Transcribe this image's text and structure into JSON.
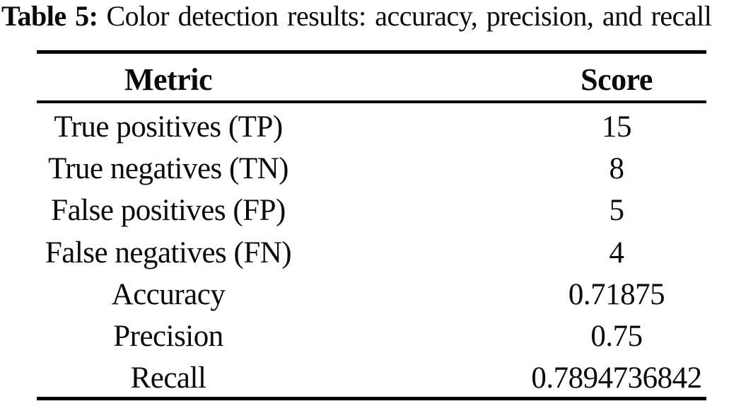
{
  "caption": {
    "label": "Table 5:",
    "text": "Color detection results: accuracy, precision, and recall"
  },
  "table": {
    "columns": [
      "Metric",
      "Score"
    ],
    "rows": [
      {
        "metric": "True positives (TP)",
        "score": "15"
      },
      {
        "metric": "True negatives (TN)",
        "score": "8"
      },
      {
        "metric": "False positives (FP)",
        "score": "5"
      },
      {
        "metric": "False negatives (FN)",
        "score": "4"
      },
      {
        "metric": "Accuracy",
        "score": "0.71875"
      },
      {
        "metric": "Precision",
        "score": "0.75"
      },
      {
        "metric": "Recall",
        "score": "0.7894736842"
      }
    ]
  },
  "colors": {
    "text": "#0a0a0a",
    "rule": "#000000",
    "background": "#ffffff"
  }
}
